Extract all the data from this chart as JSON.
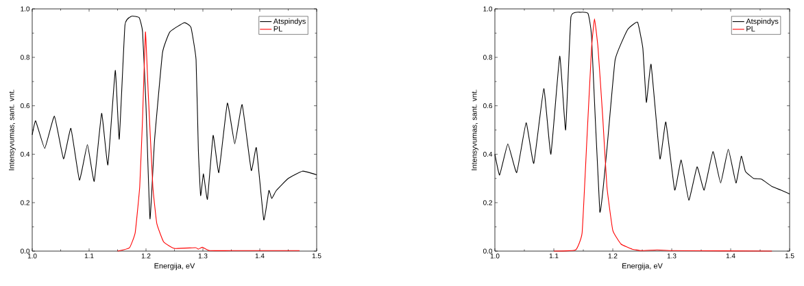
{
  "chart_data": [
    {
      "type": "line",
      "xlabel": "Energija, eV",
      "ylabel": "Intensyvumas, sant. vnt.",
      "xlim": [
        1.0,
        1.5
      ],
      "ylim": [
        0,
        1.0
      ],
      "xticks": [
        {
          "value": 1.0,
          "label": "1.0"
        },
        {
          "value": 1.1,
          "label": "1.1"
        },
        {
          "value": 1.2,
          "label": "1.2"
        },
        {
          "value": 1.3,
          "label": "1.3"
        },
        {
          "value": 1.4,
          "label": "1.4"
        },
        {
          "value": 1.5,
          "label": "1.5"
        }
      ],
      "yticks": [
        {
          "value": 0,
          "label": "0.0"
        },
        {
          "value": 0.2,
          "label": "0.2"
        },
        {
          "value": 0.4,
          "label": "0.4"
        },
        {
          "value": 0.6,
          "label": "0.6"
        },
        {
          "value": 0.8,
          "label": "0.8"
        },
        {
          "value": 1.0,
          "label": "1.0"
        }
      ],
      "legend": "top right",
      "series": [
        {
          "name": "Atspindys",
          "color": "#000000",
          "x": [
            1.0,
            1.006,
            1.022,
            1.039,
            1.055,
            1.068,
            1.083,
            1.097,
            1.109,
            1.122,
            1.133,
            1.146,
            1.153,
            1.163,
            1.175,
            1.188,
            1.194,
            1.2,
            1.207,
            1.215,
            1.229,
            1.242,
            1.267,
            1.279,
            1.288,
            1.292,
            1.296,
            1.301,
            1.308,
            1.318,
            1.328,
            1.343,
            1.356,
            1.369,
            1.385,
            1.394,
            1.407,
            1.416,
            1.421,
            1.429,
            1.45,
            1.475,
            1.5
          ],
          "values": [
            0.48,
            0.538,
            0.424,
            0.557,
            0.381,
            0.507,
            0.293,
            0.44,
            0.288,
            0.569,
            0.356,
            0.746,
            0.462,
            0.933,
            0.97,
            0.964,
            0.905,
            0.6,
            0.133,
            0.457,
            0.819,
            0.905,
            0.943,
            0.924,
            0.79,
            0.42,
            0.229,
            0.319,
            0.214,
            0.478,
            0.324,
            0.611,
            0.443,
            0.605,
            0.333,
            0.427,
            0.129,
            0.25,
            0.217,
            0.25,
            0.3,
            0.33,
            0.315
          ]
        },
        {
          "name": "PL",
          "color": "#ff0000",
          "x": [
            1.15,
            1.171,
            1.181,
            1.189,
            1.194,
            1.199,
            1.204,
            1.212,
            1.219,
            1.231,
            1.25,
            1.287,
            1.292,
            1.299,
            1.312,
            1.35,
            1.47
          ],
          "values": [
            0,
            0.014,
            0.076,
            0.267,
            0.55,
            0.905,
            0.648,
            0.267,
            0.114,
            0.038,
            0.011,
            0.014,
            0.008,
            0.016,
            0.002,
            0.002,
            0.002
          ]
        }
      ]
    },
    {
      "type": "line",
      "xlabel": "Energija, eV",
      "ylabel": "Intensyvumas, sant. vnt.",
      "xlim": [
        1.0,
        1.5
      ],
      "ylim": [
        0,
        1.0
      ],
      "xticks": [
        {
          "value": 1.0,
          "label": "1.0"
        },
        {
          "value": 1.1,
          "label": "1.1"
        },
        {
          "value": 1.2,
          "label": "1.2"
        },
        {
          "value": 1.3,
          "label": "1.3"
        },
        {
          "value": 1.4,
          "label": "1.4"
        },
        {
          "value": 1.5,
          "label": "1.5"
        }
      ],
      "yticks": [
        {
          "value": 0,
          "label": "0.0"
        },
        {
          "value": 0.2,
          "label": "0.2"
        },
        {
          "value": 0.4,
          "label": "0.4"
        },
        {
          "value": 0.6,
          "label": "0.6"
        },
        {
          "value": 0.8,
          "label": "0.8"
        },
        {
          "value": 1.0,
          "label": "1.0"
        }
      ],
      "legend": "top right",
      "series": [
        {
          "name": "Atspindys",
          "color": "#000000",
          "x": [
            1.0,
            1.008,
            1.022,
            1.037,
            1.053,
            1.066,
            1.083,
            1.095,
            1.11,
            1.12,
            1.129,
            1.146,
            1.158,
            1.164,
            1.178,
            1.19,
            1.204,
            1.225,
            1.242,
            1.251,
            1.257,
            1.265,
            1.28,
            1.29,
            1.305,
            1.316,
            1.329,
            1.343,
            1.355,
            1.37,
            1.383,
            1.396,
            1.409,
            1.418,
            1.425,
            1.439,
            1.452,
            1.47,
            1.485,
            1.5
          ],
          "values": [
            0.4,
            0.314,
            0.443,
            0.324,
            0.53,
            0.362,
            0.671,
            0.4,
            0.805,
            0.5,
            0.967,
            0.986,
            0.981,
            0.886,
            0.162,
            0.419,
            0.79,
            0.914,
            0.945,
            0.838,
            0.614,
            0.771,
            0.381,
            0.533,
            0.252,
            0.376,
            0.21,
            0.348,
            0.252,
            0.411,
            0.281,
            0.421,
            0.281,
            0.392,
            0.329,
            0.3,
            0.297,
            0.267,
            0.252,
            0.236
          ]
        },
        {
          "name": "PL",
          "color": "#ff0000",
          "x": [
            1.1,
            1.137,
            1.148,
            1.156,
            1.164,
            1.169,
            1.175,
            1.183,
            1.19,
            1.2,
            1.214,
            1.233,
            1.248,
            1.275,
            1.3,
            1.47
          ],
          "values": [
            0,
            0.005,
            0.076,
            0.457,
            0.838,
            0.959,
            0.838,
            0.552,
            0.267,
            0.086,
            0.029,
            0.008,
            0.002,
            0.005,
            0.002,
            0
          ]
        }
      ]
    }
  ]
}
